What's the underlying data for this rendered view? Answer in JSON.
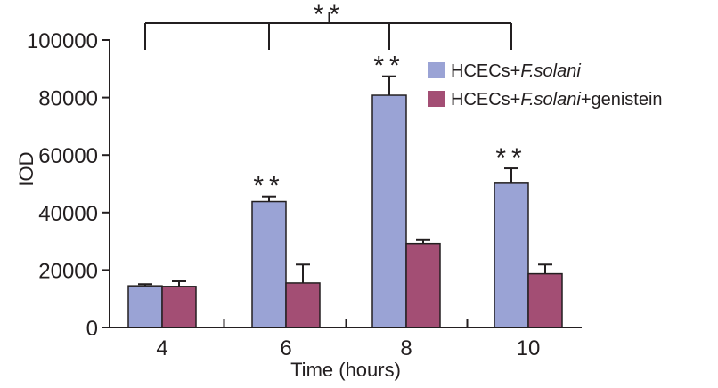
{
  "chart_data": {
    "type": "bar",
    "title": "",
    "xlabel": "Time (hours)",
    "ylabel": "IOD",
    "ylim": [
      0,
      100000
    ],
    "yticks": [
      0,
      20000,
      40000,
      60000,
      80000,
      100000
    ],
    "grid": false,
    "legend_position": "top-right",
    "categories": [
      "4",
      "6",
      "8",
      "10"
    ],
    "series": [
      {
        "name_parts": [
          {
            "text": "HCECs+",
            "italic": false
          },
          {
            "text": "F.solani",
            "italic": true
          }
        ],
        "color": "#9aa3d5",
        "values": [
          14500,
          43800,
          80800,
          50200
        ],
        "errors": [
          600,
          1800,
          6600,
          5200
        ],
        "annotations": [
          "",
          "**",
          "**",
          "**"
        ]
      },
      {
        "name_parts": [
          {
            "text": "HCECs+",
            "italic": false
          },
          {
            "text": "F.solani",
            "italic": true
          },
          {
            "text": "+genistein",
            "italic": false
          }
        ],
        "color": "#a34e74",
        "values": [
          14300,
          15500,
          29200,
          18700
        ],
        "errors": [
          1800,
          6400,
          1200,
          3200
        ],
        "annotations": [
          "",
          "",
          "",
          ""
        ]
      }
    ],
    "bracket": {
      "label": "**",
      "from_category": 0,
      "to_category": 3,
      "ticks_at": [
        0,
        1,
        2,
        3
      ],
      "center_tick": 1.5
    }
  }
}
